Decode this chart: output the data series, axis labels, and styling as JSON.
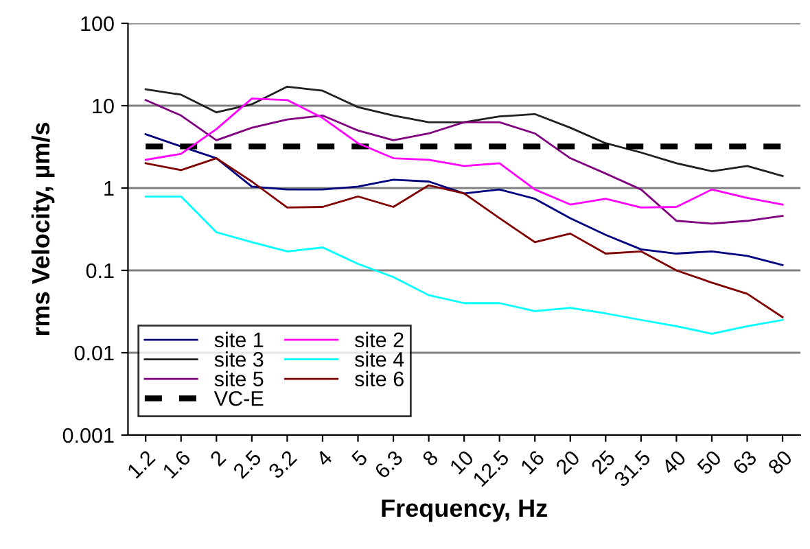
{
  "chart_data": {
    "type": "line",
    "xlabel": "Frequency, Hz",
    "ylabel": "rms Velocity, µm/s",
    "categories": [
      "1.2",
      "1.6",
      "2",
      "2.5",
      "3.2",
      "4",
      "5",
      "6.3",
      "8",
      "10",
      "12.5",
      "16",
      "20",
      "25",
      "31.5",
      "40",
      "50",
      "63",
      "80"
    ],
    "series": [
      {
        "name": "site 1",
        "color": "#000080",
        "values": [
          4.5,
          3.2,
          2.3,
          1.04,
          0.96,
          0.96,
          1.04,
          1.26,
          1.2,
          0.86,
          0.96,
          0.74,
          0.43,
          0.27,
          0.18,
          0.16,
          0.17,
          0.15,
          0.116
        ]
      },
      {
        "name": "site 3",
        "color": "#202020",
        "values": [
          15.8,
          13.6,
          8.3,
          10.4,
          17,
          15.2,
          9.6,
          7.6,
          6.3,
          6.3,
          7.4,
          7.9,
          5.4,
          3.5,
          2.7,
          2.0,
          1.6,
          1.85,
          1.4
        ]
      },
      {
        "name": "site 5",
        "color": "#800080",
        "values": [
          11.7,
          7.6,
          3.8,
          5.4,
          6.8,
          7.6,
          5.0,
          3.8,
          4.6,
          6.3,
          6.3,
          4.6,
          2.3,
          1.5,
          0.96,
          0.4,
          0.37,
          0.4,
          0.46
        ]
      },
      {
        "name": "VC-E",
        "color": "#000000",
        "line_style": "dashed",
        "values": [
          3.2,
          3.2,
          3.2,
          3.2,
          3.2,
          3.2,
          3.2,
          3.2,
          3.2,
          3.2,
          3.2,
          3.2,
          3.2,
          3.2,
          3.2,
          3.2,
          3.2,
          3.2,
          3.2
        ]
      },
      {
        "name": "site 2",
        "color": "#ff00ff",
        "values": [
          2.2,
          2.6,
          5.2,
          12.2,
          11.7,
          7.1,
          3.5,
          2.3,
          2.2,
          1.85,
          2.0,
          0.96,
          0.63,
          0.74,
          0.58,
          0.59,
          0.96,
          0.76,
          0.63
        ]
      },
      {
        "name": "site 4",
        "color": "#00ffff",
        "values": [
          0.79,
          0.79,
          0.29,
          0.22,
          0.17,
          0.19,
          0.12,
          0.083,
          0.05,
          0.04,
          0.04,
          0.032,
          0.035,
          0.03,
          0.025,
          0.021,
          0.017,
          0.021,
          0.025
        ]
      },
      {
        "name": "site 6",
        "color": "#800000",
        "values": [
          2.0,
          1.65,
          2.3,
          1.2,
          0.58,
          0.59,
          0.79,
          0.59,
          1.08,
          0.86,
          0.43,
          0.22,
          0.28,
          0.16,
          0.17,
          0.1,
          0.071,
          0.052,
          0.027
        ]
      }
    ],
    "log": "y",
    "ylim": [
      0.001,
      100
    ],
    "yticks": [
      0.001,
      0.01,
      0.1,
      1,
      10,
      100
    ],
    "grid": "y",
    "legend": "bottom left",
    "marker": "none",
    "line_style": "solid"
  }
}
